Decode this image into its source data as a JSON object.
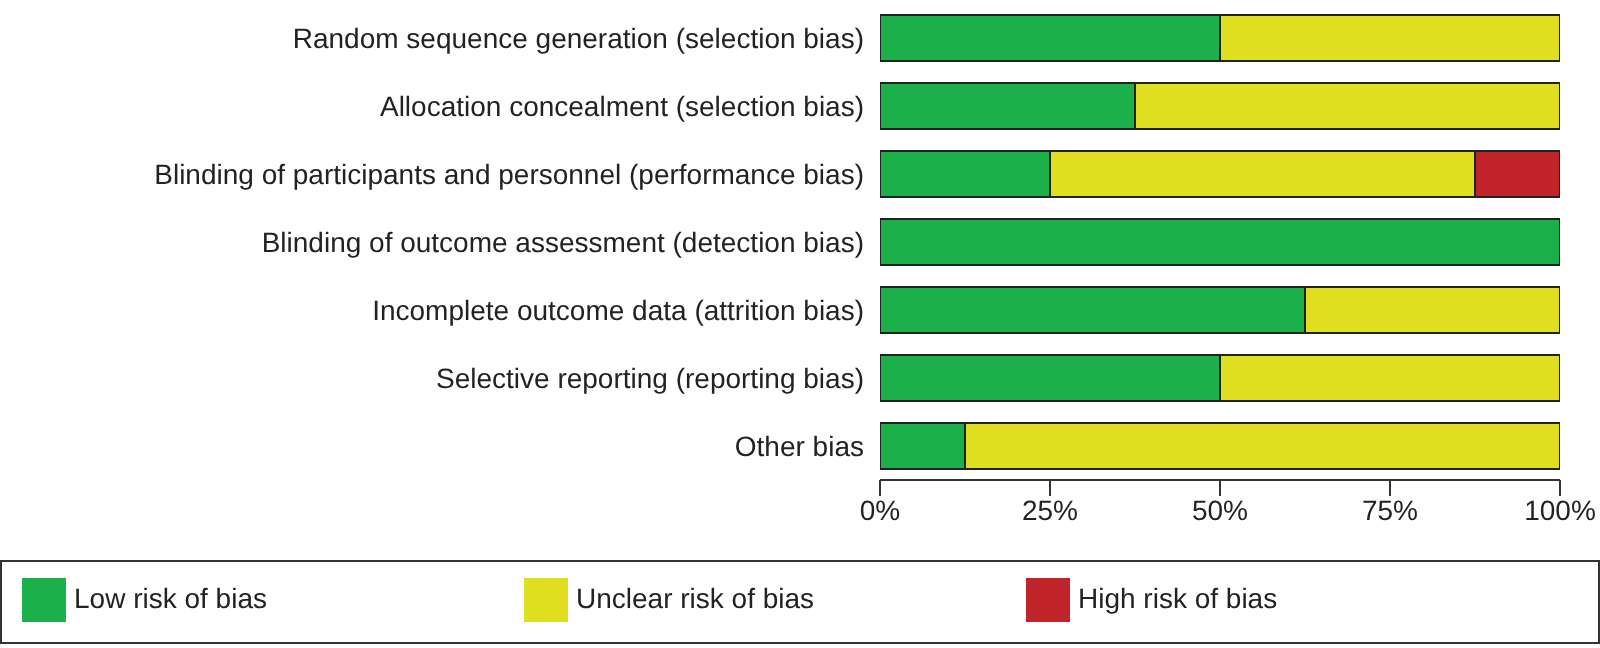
{
  "chart_data": {
    "type": "bar",
    "orientation": "horizontal",
    "stacked": true,
    "categories": [
      "Random sequence generation (selection bias)",
      "Allocation concealment (selection bias)",
      "Blinding of participants and personnel (performance bias)",
      "Blinding of outcome assessment (detection bias)",
      "Incomplete outcome data (attrition bias)",
      "Selective reporting (reporting bias)",
      "Other bias"
    ],
    "series": [
      {
        "name": "Low risk of bias",
        "color": "#1cb04b",
        "values": [
          50,
          37.5,
          25,
          100,
          62.5,
          50,
          12.5
        ]
      },
      {
        "name": "Unclear risk of bias",
        "color": "#dfdf1f",
        "values": [
          50,
          62.5,
          62.5,
          0,
          37.5,
          50,
          87.5
        ]
      },
      {
        "name": "High risk of bias",
        "color": "#c0242a",
        "values": [
          0,
          0,
          12.5,
          0,
          0,
          0,
          0
        ]
      }
    ],
    "xlim": [
      0,
      100
    ],
    "xticks": [
      {
        "value": 0,
        "label": "0%"
      },
      {
        "value": 25,
        "label": "25%"
      },
      {
        "value": 50,
        "label": "50%"
      },
      {
        "value": 75,
        "label": "75%"
      },
      {
        "value": 100,
        "label": "100%"
      }
    ],
    "grid": false,
    "legend": "bottom"
  }
}
